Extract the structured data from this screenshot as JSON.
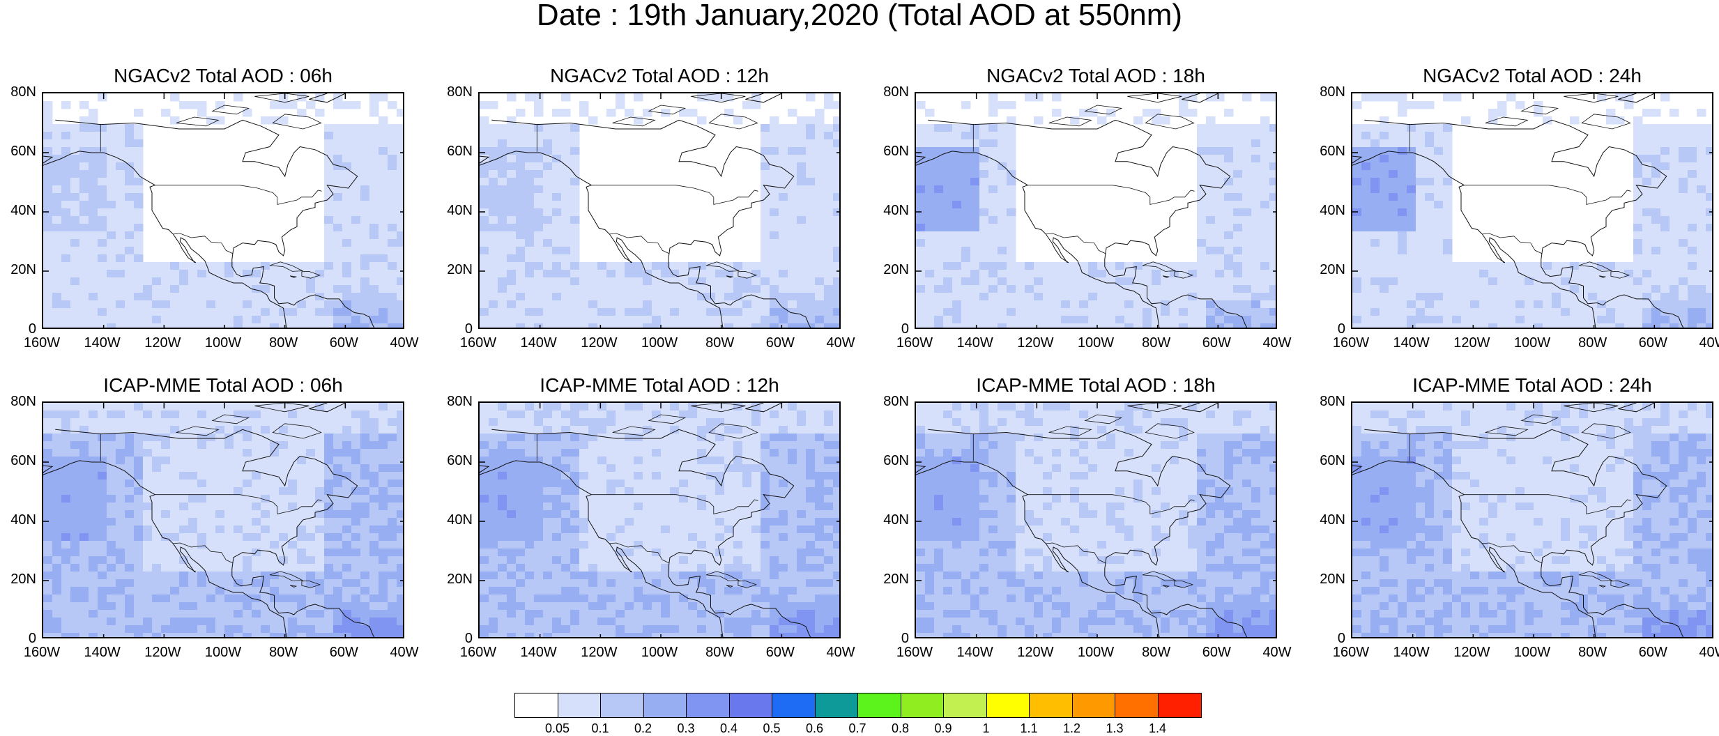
{
  "title": "Date : 19th January,2020 (Total AOD at 550nm)",
  "lat_labels": [
    "80N",
    "60N",
    "40N",
    "20N",
    "0"
  ],
  "lon_labels": [
    "160W",
    "140W",
    "120W",
    "100W",
    "80W",
    "60W",
    "40W"
  ],
  "panels": [
    {
      "title": "NGACv2 Total AOD : 06h"
    },
    {
      "title": "NGACv2 Total AOD : 12h"
    },
    {
      "title": "NGACv2 Total AOD : 18h"
    },
    {
      "title": "NGACv2 Total AOD : 24h"
    },
    {
      "title": "ICAP-MME Total AOD : 06h"
    },
    {
      "title": "ICAP-MME Total AOD : 12h"
    },
    {
      "title": "ICAP-MME Total AOD : 18h"
    },
    {
      "title": "ICAP-MME Total AOD : 24h"
    }
  ],
  "colorbar": {
    "colors": [
      "#ffffff",
      "#d6e0fa",
      "#b8c8f6",
      "#98aef3",
      "#8095f2",
      "#6a78ee",
      "#1e6cf4",
      "#0f9a9a",
      "#5cf21c",
      "#90ee20",
      "#c2f050",
      "#ffff00",
      "#ffbe00",
      "#ff9900",
      "#ff7000",
      "#ff2000"
    ],
    "labels": [
      "0.05",
      "0.1",
      "0.2",
      "0.3",
      "0.4",
      "0.5",
      "0.6",
      "0.7",
      "0.8",
      "0.9",
      "1",
      "1.1",
      "1.2",
      "1.3",
      "1.4"
    ]
  }
}
